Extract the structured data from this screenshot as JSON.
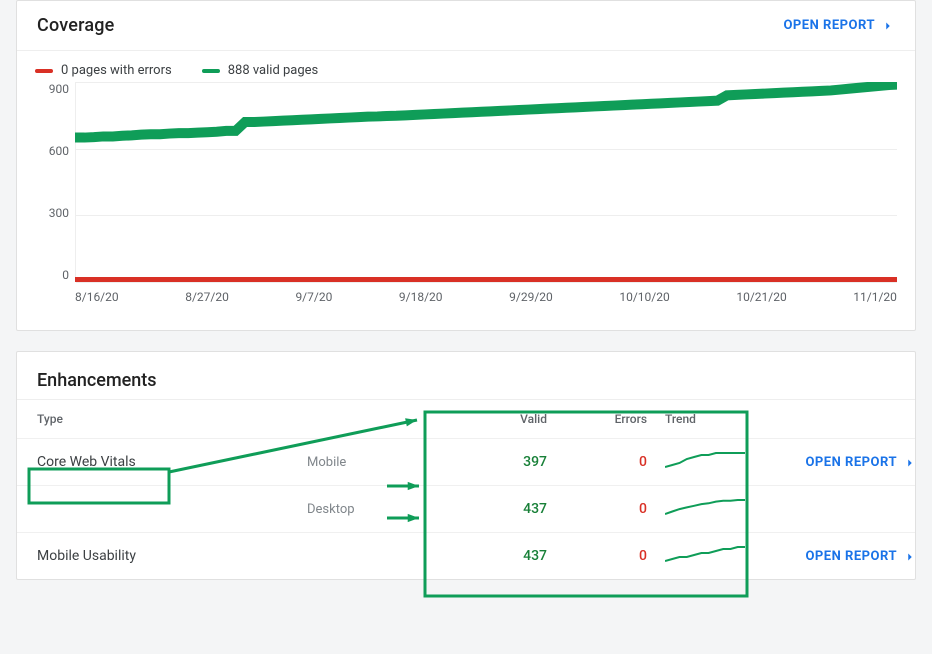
{
  "colors": {
    "card_border": "#e0e0e0",
    "text_muted": "#5f6368",
    "link": "#1a73e8",
    "valid": "#0f9d58",
    "error": "#d93025",
    "grid": "#eeeeee",
    "background": "#f4f5f6",
    "annotation": "#0f9d58"
  },
  "coverage": {
    "title": "Coverage",
    "open_report_label": "OPEN REPORT",
    "legend": [
      {
        "label": "0 pages with errors",
        "color": "#d93025"
      },
      {
        "label": "888 valid pages",
        "color": "#0f9d58"
      }
    ],
    "chart": {
      "type": "line",
      "ylim": [
        0,
        900
      ],
      "ytick_step": 300,
      "yticks": [
        0,
        300,
        600,
        900
      ],
      "xlabels": [
        "8/16/20",
        "8/27/20",
        "9/7/20",
        "9/18/20",
        "9/29/20",
        "10/10/20",
        "10/21/20",
        "11/1/20"
      ],
      "grid_color": "#eeeeee",
      "line_width": 2,
      "end_marker_radius": 4,
      "series": [
        {
          "name": "errors",
          "color": "#d93025",
          "end_marker": true,
          "points": [
            0,
            0,
            0,
            0,
            0,
            0,
            0,
            0,
            0,
            0,
            0,
            0,
            0,
            0,
            0,
            0,
            0,
            0,
            0,
            0,
            0,
            0,
            0,
            0,
            0,
            0,
            0,
            0,
            0,
            0,
            0,
            0,
            0,
            0,
            0,
            0,
            0,
            0,
            0,
            0,
            0,
            0,
            0,
            0,
            0,
            0,
            0,
            0,
            0,
            0,
            0,
            0,
            0,
            0,
            0,
            0,
            0,
            0,
            0,
            0,
            0,
            0,
            0,
            0,
            0,
            0,
            0,
            0,
            0,
            0,
            0,
            0,
            0,
            0,
            0,
            0,
            0,
            0,
            0,
            0,
            0,
            0,
            0,
            0,
            0,
            0,
            0,
            0
          ]
        },
        {
          "name": "valid",
          "color": "#0f9d58",
          "end_marker": true,
          "points": [
            650,
            650,
            652,
            655,
            655,
            658,
            660,
            663,
            665,
            665,
            668,
            670,
            670,
            672,
            674,
            676,
            680,
            680,
            720,
            720,
            722,
            724,
            726,
            728,
            730,
            732,
            734,
            736,
            738,
            740,
            742,
            744,
            745,
            747,
            748,
            750,
            752,
            754,
            756,
            758,
            760,
            762,
            764,
            766,
            768,
            770,
            772,
            774,
            776,
            778,
            780,
            782,
            784,
            786,
            788,
            790,
            792,
            794,
            796,
            798,
            800,
            802,
            804,
            806,
            808,
            810,
            812,
            814,
            816,
            840,
            842,
            844,
            846,
            848,
            850,
            852,
            854,
            856,
            858,
            860,
            862,
            866,
            870,
            874,
            878,
            882,
            886,
            888
          ]
        }
      ]
    }
  },
  "enhancements": {
    "title": "Enhancements",
    "columns": {
      "type": "Type",
      "valid": "Valid",
      "errors": "Errors",
      "trend": "Trend"
    },
    "open_report_label": "OPEN REPORT",
    "rows": [
      {
        "type_label": "Core Web Vitals",
        "has_subrows": true,
        "subrows": [
          {
            "label": "Mobile",
            "valid": 397,
            "errors": 0,
            "trend": [
              390,
              391,
              392,
              394,
              395,
              396,
              396,
              397,
              397,
              397,
              397,
              397
            ],
            "trend_color": "#0f9d58"
          },
          {
            "label": "Desktop",
            "valid": 437,
            "errors": 0,
            "trend": [
              420,
              423,
              426,
              428,
              430,
              432,
              433,
              435,
              436,
              436,
              437,
              437
            ],
            "trend_color": "#0f9d58"
          }
        ]
      },
      {
        "type_label": "Mobile Usability",
        "has_subrows": false,
        "valid": 437,
        "errors": 0,
        "trend": [
          430,
          431,
          432,
          432,
          433,
          434,
          434,
          435,
          436,
          436,
          437,
          437
        ],
        "trend_color": "#0f9d58"
      }
    ]
  },
  "annotations": {
    "color": "#0f9d58",
    "core_web_vitals_box": true,
    "values_panel_box": true,
    "arrows": 3
  }
}
